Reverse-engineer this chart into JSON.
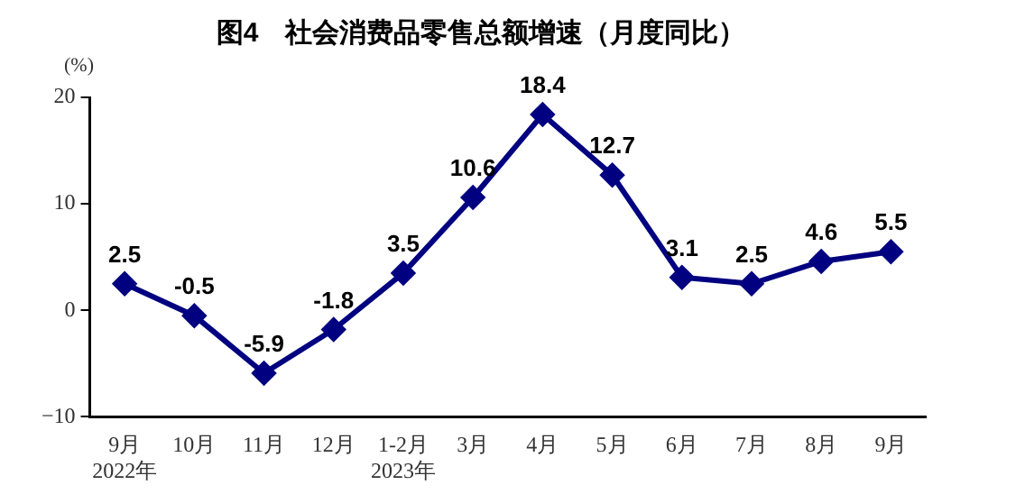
{
  "chart_data": {
    "type": "line",
    "title": "图4　社会消费品零售总额增速（月度同比）",
    "ylabel": "(%)",
    "categories": [
      "9月\n2022年",
      "10月",
      "11月",
      "12月",
      "1-2月\n2023年",
      "3月",
      "4月",
      "5月",
      "6月",
      "7月",
      "8月",
      "9月"
    ],
    "series": [
      {
        "color": "#000080",
        "values": [
          2.5,
          -0.5,
          -5.9,
          -1.8,
          3.5,
          10.6,
          18.4,
          12.7,
          3.1,
          2.5,
          4.6,
          5.5
        ]
      }
    ],
    "ylim": [
      -10,
      20
    ],
    "yticks": [
      -10,
      0,
      10,
      20
    ],
    "grid": false,
    "legend": false,
    "marker": "diamond",
    "line_style": "solid",
    "data_labels": true
  }
}
